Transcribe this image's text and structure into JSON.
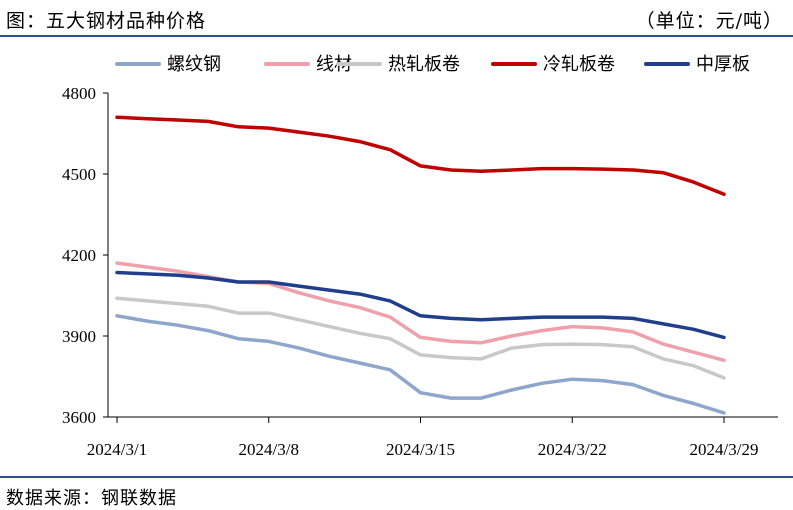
{
  "header": {
    "title": "图：五大钢材品种价格",
    "unit": "（单位：元/吨）"
  },
  "footer": {
    "source": "数据来源：钢联数据"
  },
  "chart_data": {
    "type": "line",
    "title": "图：五大钢材品种价格",
    "xlabel": "",
    "ylabel": "",
    "ylim": [
      3600,
      4800
    ],
    "yticks": [
      3600,
      3900,
      4200,
      4500,
      4800
    ],
    "x": [
      "2024/3/1",
      "2024/3/4",
      "2024/3/5",
      "2024/3/6",
      "2024/3/7",
      "2024/3/8",
      "2024/3/11",
      "2024/3/12",
      "2024/3/13",
      "2024/3/14",
      "2024/3/15",
      "2024/3/18",
      "2024/3/19",
      "2024/3/20",
      "2024/3/21",
      "2024/3/22",
      "2024/3/25",
      "2024/3/26",
      "2024/3/27",
      "2024/3/28",
      "2024/3/29"
    ],
    "xtick_labels": [
      "2024/3/1",
      "2024/3/8",
      "2024/3/15",
      "2024/3/22",
      "2024/3/29"
    ],
    "grid": false,
    "legend_position": "top",
    "series": [
      {
        "name": "螺纹钢",
        "color": "#8ea5cc",
        "values": [
          3975,
          3955,
          3940,
          3920,
          3890,
          3880,
          3855,
          3825,
          3800,
          3775,
          3690,
          3670,
          3670,
          3700,
          3725,
          3740,
          3735,
          3720,
          3680,
          3650,
          3615
        ]
      },
      {
        "name": "线材",
        "color": "#f0a0ab",
        "values": [
          4170,
          4155,
          4140,
          4120,
          4100,
          4095,
          4060,
          4030,
          4005,
          3970,
          3895,
          3880,
          3875,
          3900,
          3920,
          3935,
          3930,
          3915,
          3870,
          3840,
          3810
        ]
      },
      {
        "name": "热轧板卷",
        "color": "#c8c8c8",
        "values": [
          4040,
          4030,
          4020,
          4010,
          3985,
          3985,
          3960,
          3935,
          3910,
          3890,
          3830,
          3820,
          3815,
          3855,
          3868,
          3870,
          3868,
          3860,
          3815,
          3790,
          3745
        ]
      },
      {
        "name": "冷轧板卷",
        "color": "#c00000",
        "values": [
          4710,
          4705,
          4700,
          4695,
          4675,
          4670,
          4655,
          4640,
          4620,
          4590,
          4530,
          4515,
          4510,
          4515,
          4520,
          4520,
          4518,
          4515,
          4505,
          4470,
          4425
        ]
      },
      {
        "name": "中厚板",
        "color": "#1f3f8c",
        "values": [
          4135,
          4130,
          4125,
          4115,
          4100,
          4100,
          4085,
          4070,
          4055,
          4030,
          3975,
          3965,
          3960,
          3965,
          3970,
          3970,
          3970,
          3965,
          3945,
          3925,
          3895
        ]
      }
    ]
  }
}
